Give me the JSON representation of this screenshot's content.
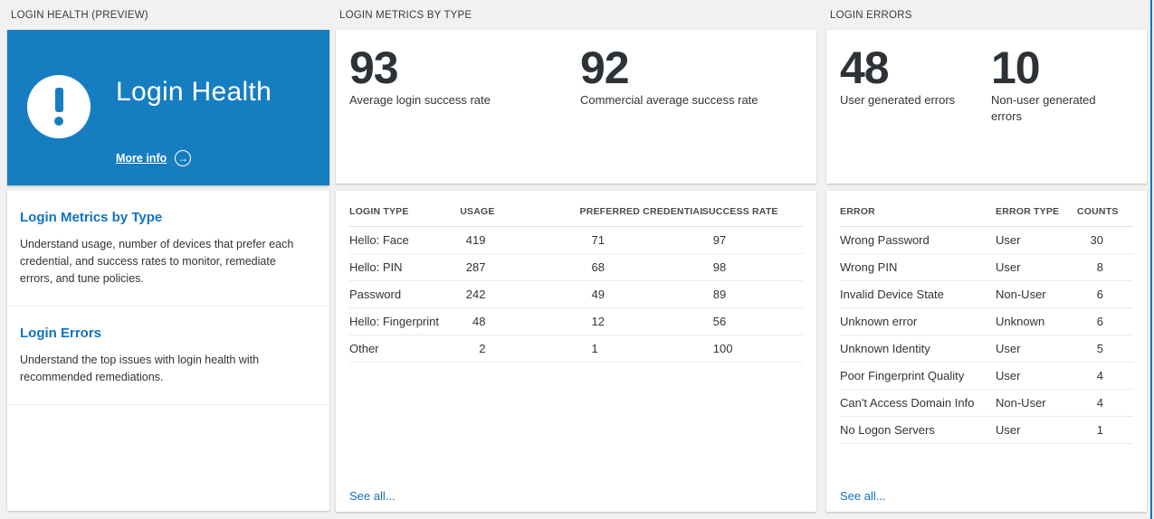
{
  "colors": {
    "accent_blue": "#177dc1",
    "link_blue": "#1173c0",
    "stat_text": "#2d3237",
    "page_background": "#f1f1f0"
  },
  "panels": {
    "health": {
      "header": "LOGIN HEALTH (PREVIEW)",
      "hero": {
        "title": "Login Health",
        "more_info_label": "More info",
        "more_info_icon": "→"
      },
      "sections": [
        {
          "title": "Login Metrics by Type",
          "body": "Understand usage, number of devices that prefer each credential, and success rates to monitor, remediate errors, and tune policies."
        },
        {
          "title": "Login Errors",
          "body": "Understand the top issues with login health with recommended remediations."
        }
      ]
    },
    "metrics": {
      "header": "LOGIN METRICS BY TYPE",
      "stats": [
        {
          "value": "93",
          "label": "Average login success rate"
        },
        {
          "value": "92",
          "label": "Commercial average success rate"
        }
      ],
      "table": {
        "columns": [
          "LOGIN TYPE",
          "USAGE",
          "PREFERRED CREDENTIAL",
          "SUCCESS RATE"
        ],
        "rows": [
          [
            "Hello: Face",
            "419",
            "71",
            "97"
          ],
          [
            "Hello: PIN",
            "287",
            "68",
            "98"
          ],
          [
            "Password",
            "242",
            "49",
            "89"
          ],
          [
            "Hello: Fingerprint",
            "48",
            "12",
            "56"
          ],
          [
            "Other",
            "2",
            "1",
            "100"
          ]
        ]
      },
      "see_all": "See all..."
    },
    "errors": {
      "header": "LOGIN ERRORS",
      "stats": [
        {
          "value": "48",
          "label": "User generated errors"
        },
        {
          "value": "10",
          "label": "Non-user generated errors"
        }
      ],
      "table": {
        "columns": [
          "ERROR",
          "ERROR TYPE",
          "COUNTS"
        ],
        "rows": [
          [
            "Wrong Password",
            "User",
            "30"
          ],
          [
            "Wrong PIN",
            "User",
            "8"
          ],
          [
            "Invalid Device State",
            "Non-User",
            "6"
          ],
          [
            "Unknown error",
            "Unknown",
            "6"
          ],
          [
            "Unknown Identity",
            "User",
            "5"
          ],
          [
            "Poor Fingerprint Quality",
            "User",
            "4"
          ],
          [
            "Can't Access Domain Info",
            "Non-User",
            "4"
          ],
          [
            "No Logon Servers",
            "User",
            "1"
          ]
        ]
      },
      "see_all": "See all..."
    }
  }
}
